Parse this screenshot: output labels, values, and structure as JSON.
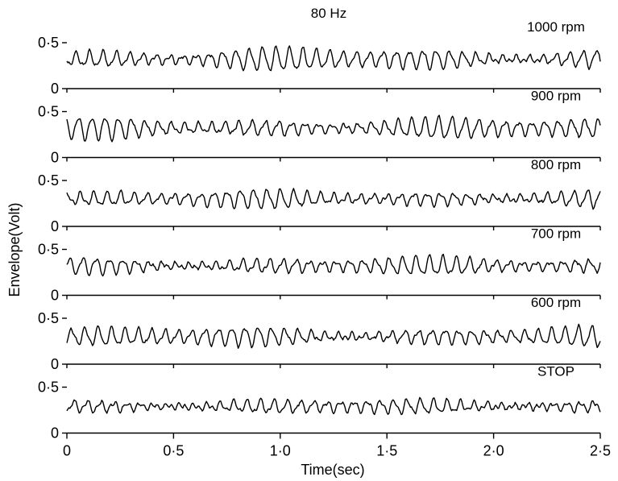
{
  "chart_data": {
    "type": "line",
    "title": "80 Hz",
    "xlabel": "Time(sec)",
    "ylabel": "Envelope(Volt)",
    "xlim": [
      0,
      2.5
    ],
    "ylim": [
      0,
      0.6
    ],
    "x_ticks": [
      {
        "value": 0,
        "label": "0"
      },
      {
        "value": 0.5,
        "label": "0·5"
      },
      {
        "value": 1.0,
        "label": "1·0"
      },
      {
        "value": 1.5,
        "label": "1·5"
      },
      {
        "value": 2.0,
        "label": "2·0"
      },
      {
        "value": 2.5,
        "label": "2·5"
      }
    ],
    "y_ticks": [
      {
        "value": 0,
        "label": "0"
      },
      {
        "value": 0.5,
        "label": "0·5"
      }
    ],
    "grid": false,
    "series": [
      {
        "name": "1000 rpm",
        "mean": 0.32,
        "amp": 0.13,
        "freq": 16,
        "seed": 1
      },
      {
        "name": "900 rpm",
        "mean": 0.32,
        "amp": 0.12,
        "freq": 16,
        "seed": 2
      },
      {
        "name": "800 rpm",
        "mean": 0.3,
        "amp": 0.1,
        "freq": 16,
        "seed": 3
      },
      {
        "name": "700 rpm",
        "mean": 0.32,
        "amp": 0.1,
        "freq": 16,
        "seed": 4
      },
      {
        "name": "600 rpm",
        "mean": 0.3,
        "amp": 0.11,
        "freq": 16,
        "seed": 5
      },
      {
        "name": "STOP",
        "mean": 0.29,
        "amp": 0.08,
        "freq": 16,
        "seed": 6
      }
    ]
  }
}
